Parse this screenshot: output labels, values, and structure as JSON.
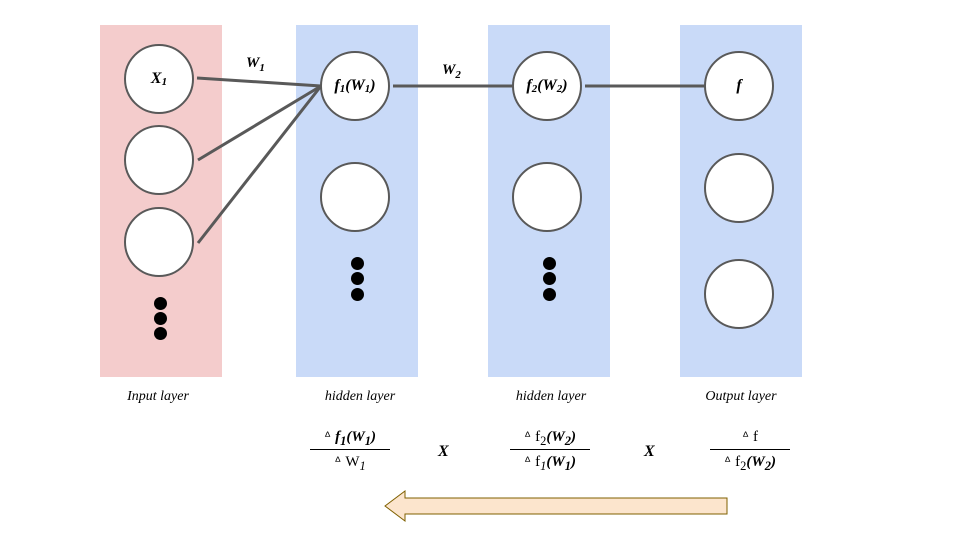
{
  "layers": [
    {
      "label": "Input layer"
    },
    {
      "label": "hidden layer"
    },
    {
      "label": "hidden layer"
    },
    {
      "label": "Output layer"
    }
  ],
  "nodes": {
    "input_top": {
      "main": "X",
      "sub": "1"
    },
    "h1_top": {
      "pre": "f",
      "sub1": "1",
      "mid": "(W",
      "sub2": "1",
      "post": ")"
    },
    "h2_top": {
      "pre": "f",
      "sub1": "2",
      "mid": "(W",
      "sub2": "2",
      "post": ")"
    },
    "out_top": {
      "main": "f"
    }
  },
  "weights": [
    {
      "main": "W",
      "sub": "1"
    },
    {
      "main": "W",
      "sub": "2"
    }
  ],
  "gradient": {
    "delta": "ᐞ",
    "times": "X",
    "frac1": {
      "num": {
        "pre": "f",
        "sub1": "1",
        "mid": "(W",
        "sub2": "1",
        "post": ")"
      },
      "den": {
        "main": "W",
        "sub": "1"
      }
    },
    "frac2": {
      "num": {
        "pre": "f",
        "sub1": "2",
        "mid": "(W",
        "sub2": "2",
        "post": ")"
      },
      "den": {
        "pre": "f",
        "sub1": "1",
        "mid": "(W",
        "sub2": "1",
        "post": ")"
      }
    },
    "frac3": {
      "num": {
        "main": "f"
      },
      "den": {
        "pre": "f",
        "sub1": "2",
        "mid": "(W",
        "sub2": "2",
        "post": ")"
      }
    }
  },
  "colors": {
    "input_layer": "#f4cccc",
    "hidden_layer": "#c9daf8",
    "arrow_fill": "#fce5cd",
    "arrow_stroke": "#7f6000",
    "edge": "#595959"
  }
}
